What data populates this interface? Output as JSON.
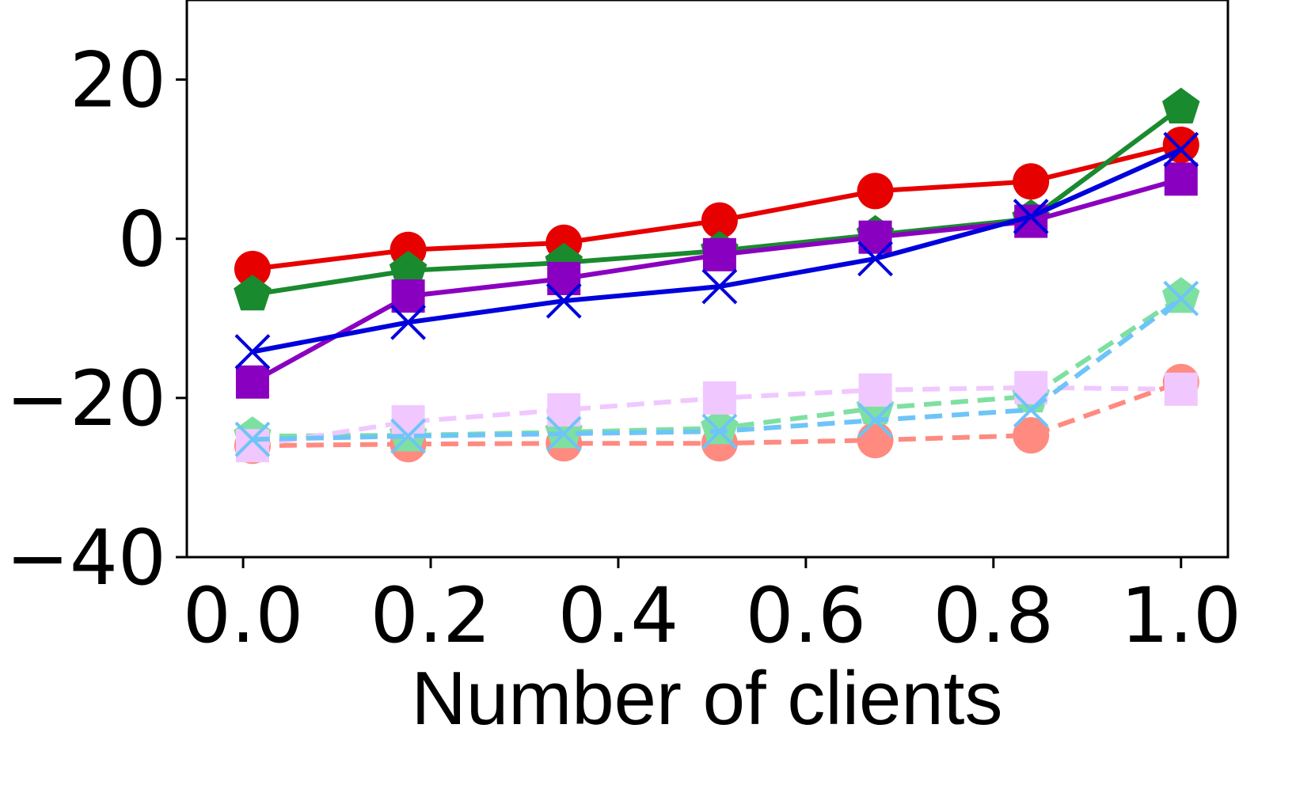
{
  "chart_data": {
    "type": "line",
    "xlabel": "Number of clients",
    "ylabel": "",
    "xlim": [
      -0.06,
      1.05
    ],
    "ylim": [
      -40,
      30
    ],
    "x_ticks": [
      0.0,
      0.2,
      0.4,
      0.6,
      0.8,
      1.0
    ],
    "x_tick_labels": [
      "0.0",
      "0.2",
      "0.4",
      "0.6",
      "0.8",
      "1.0"
    ],
    "y_ticks": [
      -40,
      -20,
      0,
      20
    ],
    "y_tick_labels": [
      "−40",
      "−20",
      "0",
      "20"
    ],
    "grid": false,
    "x": [
      0.01,
      0.176,
      0.342,
      0.508,
      0.674,
      0.84,
      1.0
    ],
    "series": [
      {
        "color": "#e60000",
        "style": "solid",
        "marker": "circle",
        "values": [
          -3.8,
          -1.4,
          -0.5,
          2.3,
          6.0,
          7.2,
          11.8
        ]
      },
      {
        "color": "#1a8a2e",
        "style": "solid",
        "marker": "pentagon",
        "values": [
          -7.0,
          -4.0,
          -3.0,
          -1.5,
          0.5,
          2.5,
          16.5
        ]
      },
      {
        "color": "#8a00c0",
        "style": "solid",
        "marker": "square",
        "values": [
          -18.0,
          -7.2,
          -5.0,
          -2.0,
          0.2,
          2.2,
          7.5
        ]
      },
      {
        "color": "#0000dd",
        "style": "solid",
        "marker": "x",
        "values": [
          -14.2,
          -10.5,
          -7.8,
          -6.0,
          -2.5,
          2.8,
          11.2
        ]
      },
      {
        "color": "#ff8a80",
        "style": "dashed",
        "marker": "circle",
        "values": [
          -26.0,
          -25.8,
          -25.7,
          -25.7,
          -25.3,
          -24.7,
          -18.0
        ]
      },
      {
        "color": "#7ee0a0",
        "style": "dashed",
        "marker": "pentagon",
        "values": [
          -24.8,
          -24.7,
          -24.3,
          -23.8,
          -21.3,
          -19.8,
          -7.3
        ]
      },
      {
        "color": "#f0c8ff",
        "style": "dashed",
        "marker": "square",
        "values": [
          -26.0,
          -23.0,
          -21.5,
          -20.0,
          -19.0,
          -18.7,
          -18.9
        ]
      },
      {
        "color": "#6ec4f8",
        "style": "dashed",
        "marker": "x",
        "values": [
          -25.2,
          -24.8,
          -24.5,
          -24.2,
          -22.8,
          -21.5,
          -7.5
        ]
      }
    ]
  }
}
